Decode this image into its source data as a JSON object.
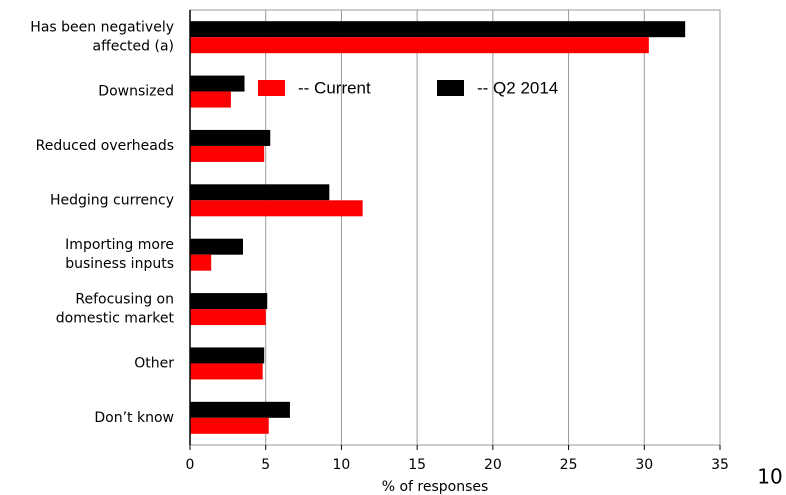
{
  "chart_data": {
    "type": "hbar",
    "categories": [
      "Has been negatively\naffected (a)",
      "Downsized",
      "Reduced overheads",
      "Hedging currency",
      "Importing more\nbusiness inputs",
      "Refocusing on\ndomestic market",
      "Other",
      "Don’t know"
    ],
    "series": [
      {
        "name": "-- Current",
        "color": "#ff0000",
        "values": [
          30.3,
          2.7,
          4.9,
          11.4,
          1.4,
          5.0,
          4.8,
          5.2
        ]
      },
      {
        "name": "-- Q2 2014",
        "color": "#000000",
        "values": [
          32.7,
          3.6,
          5.3,
          9.2,
          3.5,
          5.1,
          4.9,
          6.6
        ]
      }
    ],
    "x_label": "% of responses",
    "xlim": [
      0,
      35
    ],
    "xticks": [
      0,
      5,
      10,
      15,
      20,
      25,
      30,
      35
    ],
    "grid": true
  },
  "page_number": "10"
}
